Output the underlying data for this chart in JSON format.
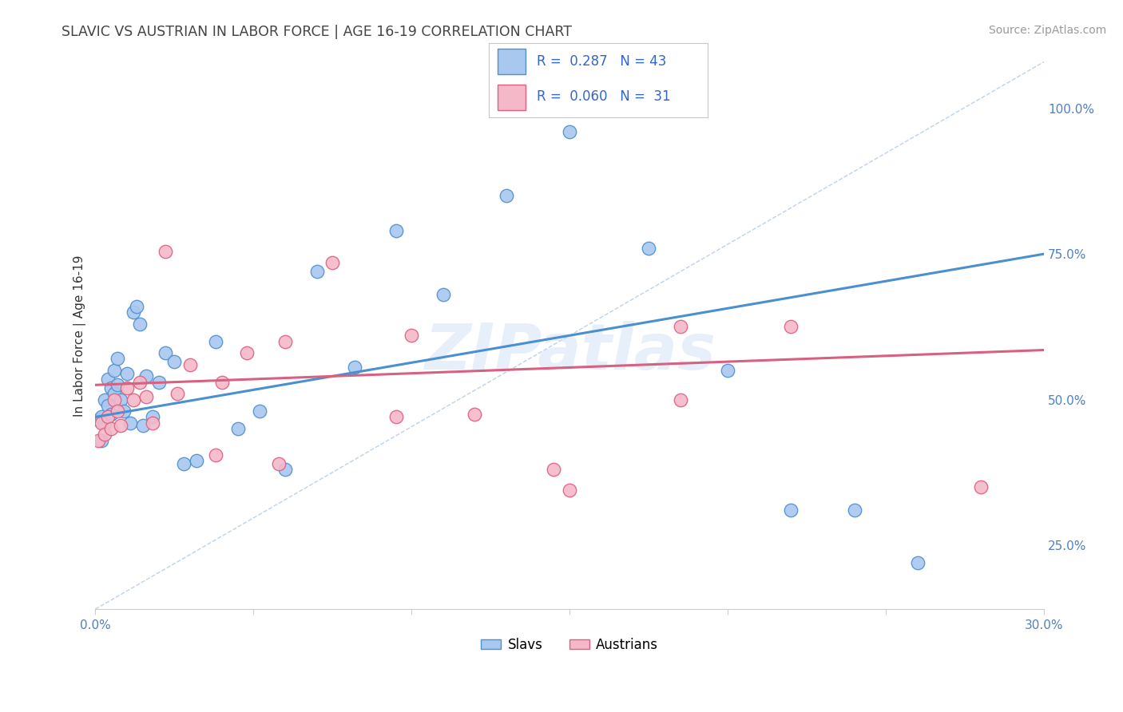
{
  "title": "SLAVIC VS AUSTRIAN IN LABOR FORCE | AGE 16-19 CORRELATION CHART",
  "source_text": "Source: ZipAtlas.com",
  "ylabel": "In Labor Force | Age 16-19",
  "xlim": [
    0.0,
    0.3
  ],
  "ylim": [
    0.14,
    1.08
  ],
  "xticks": [
    0.0,
    0.05,
    0.1,
    0.15,
    0.2,
    0.25,
    0.3
  ],
  "xticklabels": [
    "0.0%",
    "",
    "",
    "",
    "",
    "",
    "30.0%"
  ],
  "yticks_right": [
    0.25,
    0.5,
    0.75,
    1.0
  ],
  "yticklabels_right": [
    "25.0%",
    "50.0%",
    "75.0%",
    "100.0%"
  ],
  "slavs_x": [
    0.001,
    0.002,
    0.002,
    0.003,
    0.003,
    0.004,
    0.004,
    0.005,
    0.005,
    0.006,
    0.006,
    0.007,
    0.007,
    0.008,
    0.009,
    0.01,
    0.011,
    0.012,
    0.013,
    0.014,
    0.015,
    0.016,
    0.018,
    0.02,
    0.022,
    0.025,
    0.028,
    0.032,
    0.038,
    0.045,
    0.052,
    0.06,
    0.07,
    0.082,
    0.095,
    0.11,
    0.13,
    0.15,
    0.175,
    0.2,
    0.22,
    0.24,
    0.26
  ],
  "slavs_y": [
    0.465,
    0.43,
    0.47,
    0.5,
    0.46,
    0.535,
    0.49,
    0.52,
    0.475,
    0.55,
    0.51,
    0.57,
    0.525,
    0.5,
    0.48,
    0.545,
    0.46,
    0.65,
    0.66,
    0.63,
    0.455,
    0.54,
    0.47,
    0.53,
    0.58,
    0.565,
    0.39,
    0.395,
    0.6,
    0.45,
    0.48,
    0.38,
    0.72,
    0.555,
    0.79,
    0.68,
    0.85,
    0.96,
    0.76,
    0.55,
    0.31,
    0.31,
    0.22
  ],
  "austrians_x": [
    0.001,
    0.002,
    0.003,
    0.004,
    0.005,
    0.006,
    0.007,
    0.008,
    0.01,
    0.012,
    0.014,
    0.016,
    0.018,
    0.022,
    0.026,
    0.03,
    0.038,
    0.048,
    0.06,
    0.075,
    0.095,
    0.12,
    0.15,
    0.185,
    0.22,
    0.04,
    0.058,
    0.1,
    0.145,
    0.185,
    0.28
  ],
  "austrians_y": [
    0.43,
    0.46,
    0.44,
    0.47,
    0.45,
    0.5,
    0.48,
    0.455,
    0.52,
    0.5,
    0.53,
    0.505,
    0.46,
    0.755,
    0.51,
    0.56,
    0.405,
    0.58,
    0.6,
    0.735,
    0.47,
    0.475,
    0.345,
    0.625,
    0.625,
    0.53,
    0.39,
    0.61,
    0.38,
    0.5,
    0.35
  ],
  "slav_color": "#a8c8f0",
  "austrian_color": "#f5b8c8",
  "slav_edge_color": "#5090d0",
  "austrian_edge_color": "#e06080",
  "slav_line_color": "#4a8fd0",
  "austrian_line_color": "#d86080",
  "ref_line_color": "#a0c0e0",
  "legend_slav_R": "R =  0.287",
  "legend_slav_N": "N = 43",
  "legend_austrian_R": "R =  0.060",
  "legend_austrian_N": "N =  31",
  "watermark": "ZIPatlas",
  "background_color": "#ffffff",
  "grid_color": "#e8e8e8",
  "title_color": "#444444",
  "tick_color": "#5080c0"
}
